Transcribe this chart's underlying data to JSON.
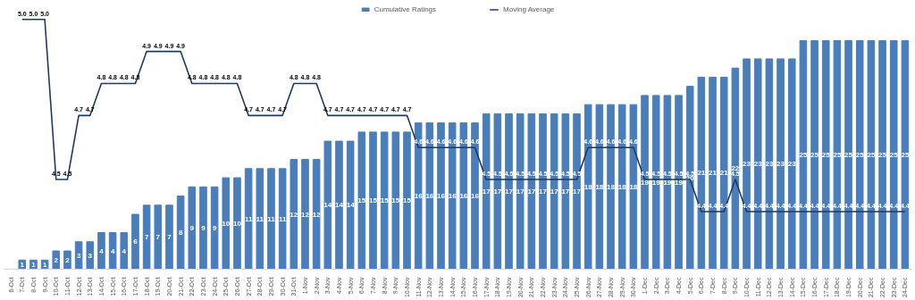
{
  "chart_data": {
    "type": "bar",
    "categories": [
      "6-Oct",
      "7-Oct",
      "8-Oct",
      "9-Oct",
      "10-Oct",
      "11-Oct",
      "12-Oct",
      "13-Oct",
      "14-Oct",
      "15-Oct",
      "16-Oct",
      "17-Oct",
      "18-Oct",
      "19-Oct",
      "20-Oct",
      "21-Oct",
      "22-Oct",
      "23-Oct",
      "24-Oct",
      "25-Oct",
      "26-Oct",
      "27-Oct",
      "28-Oct",
      "29-Oct",
      "30-Oct",
      "31-Oct",
      "1-Nov",
      "2-Nov",
      "3-Nov",
      "4-Nov",
      "5-Nov",
      "6-Nov",
      "7-Nov",
      "8-Nov",
      "9-Nov",
      "10-Nov",
      "11-Nov",
      "12-Nov",
      "13-Nov",
      "14-Nov",
      "15-Nov",
      "16-Nov",
      "17-Nov",
      "18-Nov",
      "19-Nov",
      "20-Nov",
      "21-Nov",
      "22-Nov",
      "23-Nov",
      "24-Nov",
      "25-Nov",
      "26-Nov",
      "27-Nov",
      "28-Nov",
      "29-Nov",
      "30-Nov",
      "1-Dec",
      "2-Dec",
      "3-Dec",
      "4-Dec",
      "5-Dec",
      "6-Dec",
      "7-Dec",
      "8-Dec",
      "9-Dec",
      "10-Dec",
      "11-Dec",
      "12-Dec",
      "13-Dec",
      "14-Dec",
      "15-Dec",
      "16-Dec",
      "17-Dec",
      "18-Dec",
      "19-Dec",
      "20-Dec",
      "21-Dec",
      "22-Dec",
      "23-Dec",
      "24-Dec"
    ],
    "series": [
      {
        "name": "Cumulative Ratings",
        "color": "#4a7ebb",
        "values": [
          null,
          1,
          1,
          1,
          2,
          2,
          3,
          3,
          4,
          4,
          4,
          6,
          7,
          7,
          7,
          8,
          9,
          9,
          9,
          10,
          10,
          11,
          11,
          11,
          11,
          12,
          12,
          12,
          14,
          14,
          14,
          15,
          15,
          15,
          15,
          15,
          16,
          16,
          16,
          16,
          16,
          16,
          17,
          17,
          17,
          17,
          17,
          17,
          17,
          17,
          17,
          18,
          18,
          18,
          18,
          18,
          19,
          19,
          19,
          19,
          20,
          21,
          21,
          21,
          22,
          23,
          23,
          23,
          23,
          23,
          25,
          25,
          25,
          25,
          25,
          25,
          25,
          25,
          25,
          25
        ]
      },
      {
        "name": "Moving Average",
        "type": "line",
        "axis": "y2",
        "color": "#1f3864",
        "values": [
          null,
          5.0,
          5.0,
          5.0,
          4.5,
          4.5,
          4.7,
          4.7,
          4.8,
          4.8,
          4.8,
          4.8,
          4.9,
          4.9,
          4.9,
          4.9,
          4.8,
          4.8,
          4.8,
          4.8,
          4.8,
          4.7,
          4.7,
          4.7,
          4.7,
          4.8,
          4.8,
          4.8,
          4.7,
          4.7,
          4.7,
          4.7,
          4.7,
          4.7,
          4.7,
          4.7,
          4.6,
          4.6,
          4.6,
          4.6,
          4.6,
          4.6,
          4.5,
          4.5,
          4.5,
          4.5,
          4.5,
          4.5,
          4.5,
          4.5,
          4.5,
          4.6,
          4.6,
          4.6,
          4.6,
          4.6,
          4.5,
          4.5,
          4.5,
          4.5,
          4.5,
          4.4,
          4.4,
          4.4,
          4.5,
          4.4,
          4.4,
          4.4,
          4.4,
          4.4,
          4.4,
          4.4,
          4.4,
          4.4,
          4.4,
          4.4,
          4.4,
          4.4,
          4.4,
          4.4
        ],
        "value_labels": [
          null,
          "5.0",
          "5.0",
          "5.0",
          "4.5",
          "4.5",
          "4.7",
          "4.7",
          "4.8",
          "4.8",
          "4.8",
          "4.8",
          "4.9",
          "4.9",
          "4.9",
          "4.9",
          "4.8",
          "4.8",
          "4.8",
          "4.8",
          "4.8",
          "4.7",
          "4.7",
          "4.7",
          "4.7",
          "4.8",
          "4.8",
          "4.8",
          "4.7",
          "4.7",
          "4.7",
          "4.7",
          "4.7",
          "4.7",
          "4.7",
          "4.7",
          "4.6",
          "4.6",
          "4.6",
          "4.6",
          "4.6",
          "4.6",
          "4.5",
          "4.5",
          "4.5",
          "4.5",
          "4.5",
          "4.5",
          "4.5",
          "4.5",
          "4.5",
          "4.6",
          "4.6",
          "4.6",
          "4.6",
          "4.6",
          "4.5",
          "4.5",
          "4.5",
          "4.5",
          "4.5",
          "4.4",
          "4.4",
          "4.4",
          "4.5",
          "4.4",
          "4.4",
          "4.4",
          "4.4",
          "4.4",
          "4.4",
          "4.4",
          "4.4",
          "4.4",
          "4.4",
          "4.4",
          "4.4",
          "4.4",
          "4.4",
          "4.4"
        ]
      }
    ],
    "tick_labels": "x",
    "grid": false,
    "legend": "top",
    "data_labels": true,
    "line_style": "solid",
    "marker": "none"
  }
}
